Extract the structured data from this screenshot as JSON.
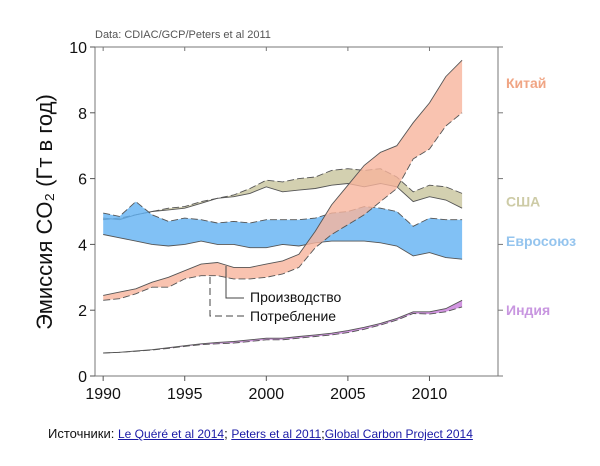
{
  "chart_data": {
    "type": "area",
    "title": "",
    "note": "Data: CDIAC/GCP/Peters et al 2011",
    "xlabel": "",
    "ylabel": "Эмиссия CO₂ (Гт в год)",
    "xlim": [
      1989.5,
      2014.2
    ],
    "ylim": [
      0,
      10
    ],
    "xticks": [
      1990,
      1995,
      2000,
      2005,
      2010
    ],
    "yticks": [
      0,
      2,
      4,
      6,
      8,
      10
    ],
    "x": [
      1990,
      1991,
      1992,
      1993,
      1994,
      1995,
      1996,
      1997,
      1998,
      1999,
      2000,
      2001,
      2002,
      2003,
      2004,
      2005,
      2006,
      2007,
      2008,
      2009,
      2010,
      2011,
      2012
    ],
    "series": [
      {
        "name": "США",
        "color": "#c8c49c",
        "label_color": "#cdcba6",
        "production": [
          4.8,
          4.75,
          4.9,
          5.0,
          5.05,
          5.1,
          5.25,
          5.4,
          5.45,
          5.55,
          5.75,
          5.6,
          5.65,
          5.7,
          5.8,
          5.85,
          5.75,
          5.85,
          5.75,
          5.3,
          5.45,
          5.35,
          5.1
        ],
        "consumption": [
          4.75,
          4.8,
          4.9,
          5.0,
          5.1,
          5.15,
          5.3,
          5.4,
          5.5,
          5.7,
          5.95,
          5.9,
          6.0,
          6.05,
          6.25,
          6.3,
          6.25,
          6.3,
          6.05,
          5.6,
          5.8,
          5.75,
          5.55
        ]
      },
      {
        "name": "Евросоюз",
        "color": "#62b2f2",
        "label_color": "#94c4ee",
        "production": [
          4.3,
          4.2,
          4.1,
          4.0,
          3.95,
          4.0,
          4.1,
          4.0,
          4.0,
          3.9,
          3.9,
          4.0,
          3.95,
          4.05,
          4.1,
          4.1,
          4.1,
          4.05,
          3.95,
          3.65,
          3.75,
          3.6,
          3.55
        ],
        "consumption": [
          4.95,
          4.85,
          5.3,
          4.9,
          4.7,
          4.8,
          4.75,
          4.65,
          4.7,
          4.65,
          4.75,
          4.75,
          4.75,
          4.8,
          4.95,
          5.0,
          5.15,
          5.1,
          5.0,
          4.55,
          4.8,
          4.75,
          4.75
        ]
      },
      {
        "name": "Китай",
        "color": "#f7b49c",
        "label_color": "#f0a584",
        "production": [
          2.45,
          2.55,
          2.65,
          2.85,
          3.0,
          3.2,
          3.4,
          3.45,
          3.3,
          3.3,
          3.4,
          3.5,
          3.7,
          4.4,
          5.2,
          5.8,
          6.4,
          6.8,
          7.0,
          7.7,
          8.3,
          9.1,
          9.6
        ],
        "consumption": [
          2.3,
          2.35,
          2.5,
          2.7,
          2.7,
          2.95,
          3.05,
          3.05,
          2.95,
          2.95,
          3.0,
          3.1,
          3.3,
          3.9,
          4.3,
          4.6,
          4.9,
          5.3,
          5.7,
          6.6,
          6.9,
          7.6,
          8.0
        ]
      },
      {
        "name": "Индия",
        "color": "#c77ada",
        "label_color": "#c896e0",
        "production": [
          0.7,
          0.72,
          0.76,
          0.8,
          0.86,
          0.92,
          0.98,
          1.02,
          1.05,
          1.1,
          1.15,
          1.15,
          1.2,
          1.25,
          1.3,
          1.38,
          1.48,
          1.6,
          1.75,
          1.95,
          1.95,
          2.05,
          2.3
        ],
        "consumption": [
          0.7,
          0.72,
          0.75,
          0.79,
          0.84,
          0.9,
          0.95,
          0.98,
          1.0,
          1.05,
          1.1,
          1.1,
          1.15,
          1.2,
          1.25,
          1.32,
          1.42,
          1.55,
          1.7,
          1.9,
          1.88,
          1.95,
          2.1
        ]
      }
    ],
    "legend": {
      "production": "Производство",
      "consumption": "Потребление",
      "placement": "center-left"
    }
  },
  "sources": {
    "label": "Источники",
    "links": [
      "Le Quéré et al 2014",
      "Peters et al 2011",
      "Global Carbon Project 2014"
    ]
  }
}
